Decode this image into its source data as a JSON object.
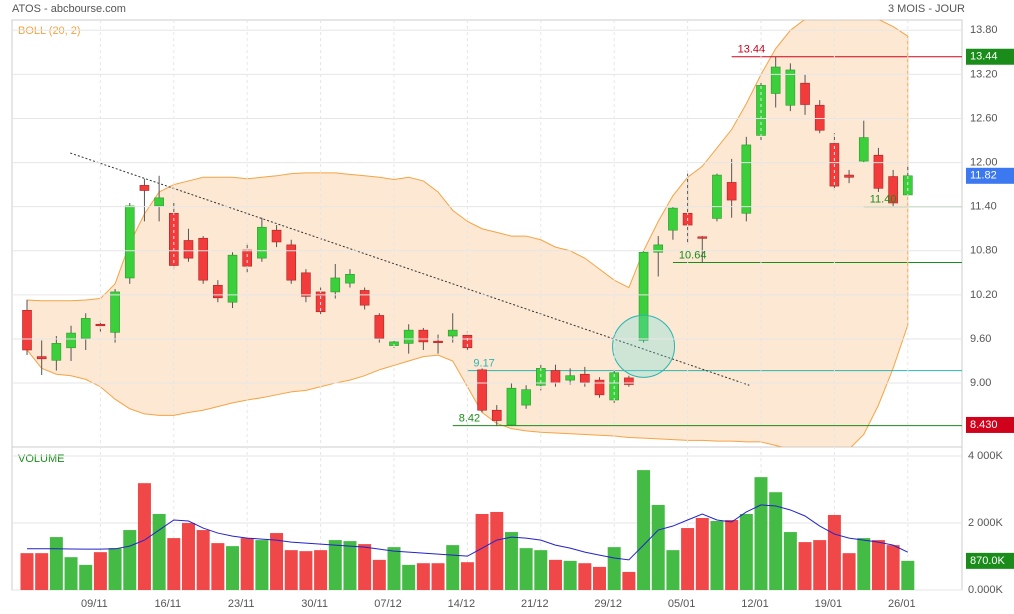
{
  "header": {
    "title": "ATOS - abcbourse.com",
    "period": "3 MOIS - JOUR"
  },
  "chart_data": [
    {
      "type": "candlestick",
      "indicator": "BOLL (20, 2)",
      "open": [
        9.99,
        9.36,
        9.31,
        9.48,
        9.61,
        9.8,
        9.69,
        10.43,
        11.69,
        11.41,
        11.31,
        10.94,
        10.97,
        10.33,
        10.1,
        10.81,
        10.7,
        11.08,
        10.88,
        10.5,
        10.24,
        10.24,
        10.36,
        10.26,
        9.92,
        9.51,
        9.54,
        9.72,
        9.57,
        9.64,
        9.65,
        9.18,
        8.63,
        8.43,
        8.7,
        8.97,
        9.17,
        9.04,
        9.12,
        9.04,
        8.77,
        9.07,
        9.58,
        10.78,
        11.08,
        11.31,
        10.99,
        11.24,
        11.73,
        11.31,
        12.37,
        12.94,
        12.78,
        13.08,
        12.78,
        12.26,
        11.83,
        12.02,
        12.1,
        11.81,
        11.56
      ],
      "high": [
        10.13,
        9.58,
        9.64,
        9.78,
        9.95,
        9.85,
        10.28,
        11.45,
        11.78,
        11.82,
        11.45,
        11.1,
        11,
        10.4,
        10.78,
        10.9,
        11.25,
        11.15,
        10.95,
        10.55,
        10.3,
        10.62,
        10.55,
        10.3,
        9.95,
        9.6,
        9.8,
        9.75,
        9.66,
        9.95,
        9.7,
        9.2,
        8.7,
        9,
        8.97,
        9.25,
        9.25,
        9.2,
        9.22,
        9.08,
        9.18,
        9.1,
        10.8,
        11,
        11.4,
        11.85,
        11,
        11.85,
        12.05,
        12.35,
        13.1,
        13.44,
        13.35,
        13.2,
        12.85,
        12.4,
        11.9,
        12.57,
        12.2,
        11.9,
        11.96
      ],
      "low": [
        9.38,
        9.11,
        9.17,
        9.3,
        9.45,
        9.7,
        9.55,
        10.35,
        11.2,
        11.2,
        10.55,
        10.65,
        10.35,
        10.1,
        10.02,
        10.5,
        10.65,
        10.85,
        10.35,
        10.1,
        9.93,
        10.15,
        10.3,
        10,
        9.55,
        9.48,
        9.4,
        9.45,
        9.4,
        9.55,
        9.45,
        8.6,
        8.42,
        8.42,
        8.65,
        8.9,
        8.95,
        8.98,
        8.95,
        8.8,
        8.73,
        8.95,
        9.55,
        10.45,
        10.95,
        10.9,
        10.64,
        11.2,
        11.25,
        11.2,
        12.3,
        12.75,
        12.7,
        12.65,
        12.4,
        11.62,
        11.72,
        12,
        11.6,
        11.4,
        11.55
      ],
      "close": [
        9.45,
        9.33,
        9.54,
        9.68,
        9.88,
        9.78,
        10.24,
        11.41,
        11.62,
        11.52,
        10.6,
        10.7,
        10.4,
        10.16,
        10.74,
        10.59,
        11.12,
        10.92,
        10.4,
        10.18,
        9.97,
        10.43,
        10.48,
        10.06,
        9.61,
        9.56,
        9.72,
        9.56,
        9.55,
        9.72,
        9.48,
        8.63,
        8.49,
        8.93,
        8.91,
        9.2,
        9,
        9.1,
        9.01,
        8.84,
        9.14,
        8.98,
        10.78,
        10.88,
        11.38,
        11.15,
        10.98,
        11.83,
        11.49,
        12.24,
        13.05,
        13.3,
        13.26,
        12.79,
        12.44,
        11.68,
        11.8,
        12.34,
        11.65,
        11.45,
        11.82
      ],
      "band_upper": [
        10.13,
        10.12,
        10.12,
        10.12,
        10.13,
        10.15,
        10.35,
        10.9,
        11.3,
        11.6,
        11.7,
        11.75,
        11.8,
        11.8,
        11.8,
        11.78,
        11.8,
        11.82,
        11.85,
        11.86,
        11.86,
        11.86,
        11.84,
        11.82,
        11.8,
        11.77,
        11.8,
        11.75,
        11.6,
        11.35,
        11.2,
        11.1,
        11.05,
        11,
        11,
        10.95,
        10.85,
        10.8,
        10.7,
        10.55,
        10.4,
        10.3,
        10.8,
        11.2,
        11.55,
        11.8,
        11.95,
        12.2,
        12.45,
        12.8,
        13.2,
        13.55,
        13.8,
        13.95,
        13.95,
        13.95,
        13.95,
        13.95,
        13.95,
        13.85,
        13.72
      ],
      "band_lower": [
        9.45,
        9.2,
        9.12,
        9.1,
        9.05,
        8.95,
        8.78,
        8.65,
        8.58,
        8.56,
        8.56,
        8.6,
        8.63,
        8.68,
        8.73,
        8.77,
        8.8,
        8.84,
        8.88,
        8.9,
        8.95,
        9,
        9.04,
        9.1,
        9.18,
        9.24,
        9.3,
        9.36,
        9.38,
        9.3,
        8.95,
        8.6,
        8.45,
        8.38,
        8.35,
        8.33,
        8.32,
        8.31,
        8.3,
        8.29,
        8.28,
        8.26,
        8.25,
        8.24,
        8.23,
        8.22,
        8.22,
        8.21,
        8.21,
        8.2,
        8.2,
        8.15,
        8.1,
        8.05,
        8,
        8,
        8.1,
        8.3,
        8.7,
        9.2,
        9.79
      ],
      "up_color": "#3ccf3c",
      "down_color": "#f23c3c",
      "band_color": "#f5a344",
      "ylim": [
        8.13,
        13.94
      ],
      "yticks": [
        {
          "value": 9,
          "label": "9.00"
        },
        {
          "value": 9.6,
          "label": "9.60"
        },
        {
          "value": 10.2,
          "label": "10.20"
        },
        {
          "value": 10.8,
          "label": "10.80"
        },
        {
          "value": 11.4,
          "label": "11.40"
        },
        {
          "value": 12,
          "label": "12.00"
        },
        {
          "value": 12.6,
          "label": "12.60"
        },
        {
          "value": 13.2,
          "label": "13.20"
        },
        {
          "value": 13.8,
          "label": "13.80"
        }
      ],
      "levels": [
        {
          "value": 13.44,
          "label": "13.44",
          "color": "#d0021b",
          "from": 48
        },
        {
          "value": 11.4,
          "label": "11.40",
          "color": "#1a8c1a",
          "from": 57
        },
        {
          "value": 10.64,
          "label": "10.64",
          "color": "#1a8c1a",
          "from": 44
        },
        {
          "value": 9.17,
          "label": "9.17",
          "color": "#2bb5b0",
          "from": 30
        },
        {
          "value": 8.42,
          "label": "8.42",
          "color": "#1a8c1a",
          "from": 29
        }
      ],
      "trendline": {
        "values": [
          12.13,
          8.97
        ],
        "from": 2.95,
        "to": 49.2
      },
      "price_tags": [
        {
          "value": 13.44,
          "label": "13.44",
          "color": "#1a8c1a"
        },
        {
          "value": 11.82,
          "label": "11.82",
          "color": "#3c78f0"
        },
        {
          "value": 8.43,
          "label": "8.430",
          "color": "#d0021b"
        }
      ]
    },
    {
      "type": "bar",
      "title": "VOLUME",
      "categories": [
        null,
        null,
        null,
        null,
        null,
        "09/11",
        null,
        null,
        null,
        null,
        "16/11",
        null,
        null,
        null,
        null,
        "23/11",
        null,
        null,
        null,
        null,
        "30/11",
        null,
        null,
        null,
        null,
        "07/12",
        null,
        null,
        null,
        null,
        "14/12",
        null,
        null,
        null,
        null,
        "21/12",
        null,
        null,
        null,
        null,
        "29/12",
        null,
        null,
        null,
        null,
        "05/01",
        null,
        null,
        null,
        null,
        "12/01",
        null,
        null,
        null,
        null,
        "19/01",
        null,
        null,
        null,
        null,
        "26/01"
      ],
      "values": [
        1100,
        1100,
        1580,
        980,
        750,
        1130,
        1250,
        1790,
        3190,
        2270,
        1550,
        2000,
        1790,
        1400,
        1310,
        1550,
        1490,
        1700,
        1190,
        1160,
        1190,
        1490,
        1460,
        1370,
        900,
        1280,
        750,
        800,
        800,
        1340,
        830,
        2270,
        2330,
        1730,
        1250,
        1190,
        900,
        870,
        800,
        690,
        1280,
        540,
        3580,
        2540,
        1190,
        1850,
        2150,
        2060,
        2090,
        2270,
        3370,
        2920,
        1730,
        1430,
        1490,
        2240,
        1100,
        1550,
        1490,
        1340,
        870
      ],
      "average": [
        1230,
        1230,
        1230,
        1225,
        1220,
        1220,
        1230,
        1310,
        1490,
        1790,
        2090,
        2060,
        1850,
        1700,
        1610,
        1550,
        1520,
        1490,
        1430,
        1400,
        1370,
        1340,
        1310,
        1280,
        1220,
        1160,
        1130,
        1100,
        1070,
        1040,
        1010,
        1250,
        1490,
        1580,
        1550,
        1490,
        1340,
        1250,
        1130,
        1040,
        955,
        900,
        1340,
        1790,
        1910,
        2090,
        2270,
        2090,
        2030,
        2330,
        2540,
        2510,
        2390,
        2210,
        1910,
        1670,
        1550,
        1490,
        1430,
        1340,
        1130
      ],
      "up_color": "#44bb44",
      "down_color": "#f04848",
      "average_color": "#2222cc",
      "ylim": [
        0,
        4270
      ],
      "yticks": [
        {
          "value": 0,
          "label": "0.000K"
        },
        {
          "value": 2000,
          "label": "2 000K"
        },
        {
          "value": 4000,
          "label": "4 000K"
        }
      ],
      "value_tag": {
        "value": 870,
        "label": "870.0K",
        "color": "#1a8c1a"
      }
    }
  ]
}
